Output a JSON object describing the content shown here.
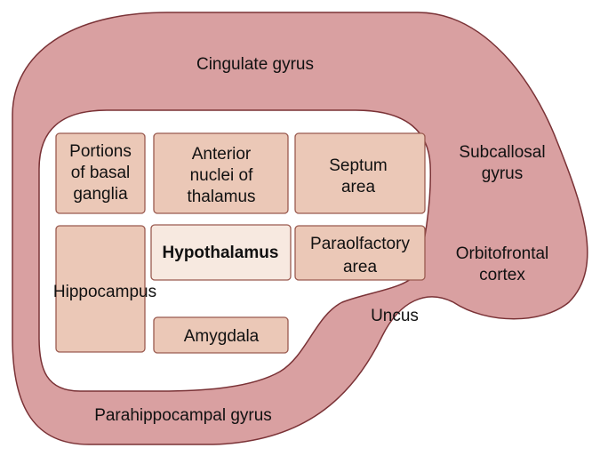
{
  "colors": {
    "ring_fill": "#d9a0a1",
    "ring_stroke": "#7a3236",
    "box_fill": "#ebc8b7",
    "box_stroke": "#9a5a4f",
    "highlight_fill": "#f7e9e0",
    "background": "#ffffff"
  },
  "ring_labels": {
    "cingulate": "Cingulate gyrus",
    "subcallosal_1": "Subcallosal",
    "subcallosal_2": "gyrus",
    "orbitofrontal_1": "Orbitofrontal",
    "orbitofrontal_2": "cortex",
    "uncus": "Uncus",
    "parahippocampal": "Parahippocampal gyrus"
  },
  "boxes": {
    "basal_ganglia": [
      "Portions",
      "of basal",
      "ganglia"
    ],
    "anterior_nuclei": [
      "Anterior",
      "nuclei of",
      "thalamus"
    ],
    "septum": [
      "Septum",
      "area"
    ],
    "hippocampus": [
      "Hippocampus"
    ],
    "hypothalamus": [
      "Hypothalamus"
    ],
    "paraolfactory": [
      "Paraolfactory",
      "area"
    ],
    "amygdala": [
      "Amygdala"
    ]
  }
}
